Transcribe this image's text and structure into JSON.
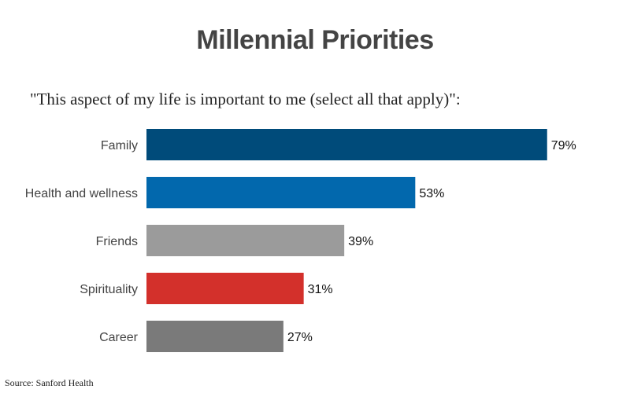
{
  "chart_data": {
    "type": "bar",
    "orientation": "horizontal",
    "title": "Millennial Priorities",
    "subtitle": "\"This aspect of my life is important to me (select all that apply)\":",
    "categories": [
      "Family",
      "Health and wellness",
      "Friends",
      "Spirituality",
      "Career"
    ],
    "values": [
      79,
      53,
      39,
      31,
      27
    ],
    "value_labels": [
      "79%",
      "53%",
      "39%",
      "31%",
      "27%"
    ],
    "colors": [
      "#004b7a",
      "#0268ad",
      "#9b9b9b",
      "#d3302b",
      "#7a7a7a"
    ],
    "xlabel": "",
    "ylabel": "",
    "xlim": [
      0,
      100
    ],
    "grid": false,
    "source": "Source: Sanford Health"
  }
}
